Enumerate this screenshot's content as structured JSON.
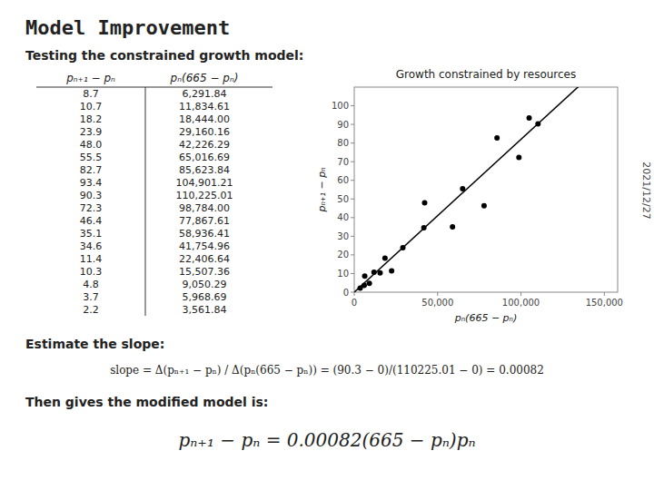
{
  "chart_data": [
    {
      "type": "table",
      "title": "Model   Improvement",
      "subtitle": "Testing the constrained growth model:",
      "annotations": [
        "2021/12/27",
        "Estimate the slope:",
        "slope = Δ(pₙ₊₁ − pₙ) / Δ(pₙ(665 − pₙ)) = (90.3 − 0)/(110225.01 − 0) = 0.00082",
        "Then gives the modified model is:",
        "pₙ₊₁ − pₙ = 0.00082(665 − pₙ)pₙ"
      ],
      "series": [
        {
          "name": "pₙ₊₁ − pₙ",
          "values": [
            8.7,
            10.7,
            18.2,
            23.9,
            48.0,
            55.5,
            82.7,
            93.4,
            90.3,
            72.3,
            46.4,
            35.1,
            34.6,
            11.4,
            10.3,
            4.8,
            3.7,
            2.2
          ],
          "value_labels": [
            "8.7",
            "10.7",
            "18.2",
            "23.9",
            "48.0",
            "55.5",
            "82.7",
            "93.4",
            "90.3",
            "72.3",
            "46.4",
            "35.1",
            "34.6",
            "11.4",
            "10.3",
            "4.8",
            "3.7",
            "2.2"
          ]
        },
        {
          "name": "pₙ(665 − pₙ)",
          "values": [
            6291.84,
            11834.61,
            18444.0,
            29160.16,
            42226.29,
            65016.69,
            85623.84,
            104901.21,
            110225.01,
            98784.0,
            77867.61,
            58936.41,
            41754.96,
            22406.64,
            15507.36,
            9050.29,
            5968.69,
            3561.84
          ],
          "value_labels": [
            "6,291.84",
            "11,834.61",
            "18,444.00",
            "29,160.16",
            "42,226.29",
            "65,016.69",
            "85,623.84",
            "104,901.21",
            "110,225.01",
            "98,784.00",
            "77,867.61",
            "58,936.41",
            "41,754.96",
            "22,406.64",
            "15,507.36",
            "9,050.29",
            "5,968.69",
            "3,561.84"
          ]
        }
      ]
    },
    {
      "type": "scatter",
      "title": "Growth constrained by resources",
      "x_label": "pₙ(665 − pₙ)",
      "y_label": "pₙ₊₁ − pₙ",
      "x": [
        6291.84,
        11834.61,
        18444.0,
        29160.16,
        42226.29,
        65016.69,
        85623.84,
        104901.21,
        110225.01,
        98784.0,
        77867.61,
        58936.41,
        41754.96,
        22406.64,
        15507.36,
        9050.29,
        5968.69,
        3561.84
      ],
      "values": [
        8.7,
        10.7,
        18.2,
        23.9,
        48.0,
        55.5,
        82.7,
        93.4,
        90.3,
        72.3,
        46.4,
        35.1,
        34.6,
        11.4,
        10.3,
        4.8,
        3.7,
        2.2
      ],
      "color": "#000000",
      "slope": 0.00082,
      "xlim": [
        0,
        158000
      ],
      "ylim": [
        0,
        110
      ],
      "xticks": [
        0,
        {
          "value": 50000,
          "label": "50,000"
        },
        {
          "value": 100000,
          "label": "100,000"
        },
        {
          "value": 150000,
          "label": "150,000"
        }
      ],
      "yticks": [
        0,
        10,
        20,
        30,
        40,
        50,
        60,
        70,
        80,
        90,
        100
      ],
      "grid": false
    }
  ]
}
